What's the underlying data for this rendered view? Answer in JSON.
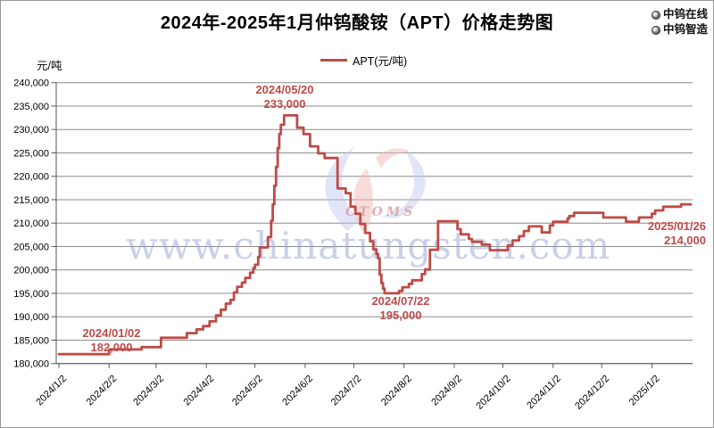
{
  "title": "2024年-2025年1月仲钨酸铵（APT）价格走势图",
  "header_badges": [
    {
      "label": "中钨在线"
    },
    {
      "label": "中钨智造"
    }
  ],
  "legend": {
    "label": "APT(元/吨)"
  },
  "y_axis_unit": "元/吨",
  "watermark": {
    "text": "www.chinatungsten.com",
    "logo_text": "CTOMS"
  },
  "colors": {
    "line": "#BE4B48",
    "annotation": "#BE4B48",
    "grid": "#8C8C8C",
    "axis": "#555555",
    "watermark_text": "#99a2d5",
    "watermark_blue": "#bcc6ee",
    "watermark_red": "#f2b9b9",
    "background": "#ffffff"
  },
  "annotations": [
    {
      "date": "2024/01/02",
      "value": "182,000"
    },
    {
      "date": "2024/05/20",
      "value": "233,000"
    },
    {
      "date": "2024/07/22",
      "value": "195,000"
    },
    {
      "date": "2025/01/26",
      "value": "214,000"
    }
  ],
  "chart_data": {
    "type": "line",
    "title": "2024年-2025年1月仲钨酸铵（APT）价格走势图",
    "xlabel": "",
    "ylabel": "元/吨",
    "ylim": [
      180000,
      240000
    ],
    "y_tick_step": 5000,
    "grid": true,
    "legend_position": "top-center",
    "x_tick_labels": [
      "2024/1/2",
      "2024/2/2",
      "2024/3/2",
      "2024/4/2",
      "2024/5/2",
      "2024/6/2",
      "2024/7/2",
      "2024/8/2",
      "2024/9/2",
      "2024/10/2",
      "2024/11/2",
      "2024/12/2",
      "2025/1/2"
    ],
    "x_tick_days": [
      0,
      31,
      60,
      91,
      121,
      152,
      182,
      213,
      244,
      274,
      305,
      335,
      366
    ],
    "x_total_days": 390,
    "key_points": [
      {
        "date": "2024/01/02",
        "value": 182000
      },
      {
        "date": "2024/05/20",
        "value": 233000
      },
      {
        "date": "2024/07/22",
        "value": 195000
      },
      {
        "date": "2025/01/26",
        "value": 214000
      }
    ],
    "series": [
      {
        "name": "APT(元/吨)",
        "unit": "元/吨",
        "points_format": "[days_since_2024-01-02, price]",
        "points": [
          [
            0,
            182000
          ],
          [
            31,
            183000
          ],
          [
            51,
            183500
          ],
          [
            63,
            185500
          ],
          [
            79,
            186500
          ],
          [
            85,
            187300
          ],
          [
            89,
            188000
          ],
          [
            93,
            189000
          ],
          [
            97,
            190300
          ],
          [
            100,
            191500
          ],
          [
            103,
            192800
          ],
          [
            106,
            193600
          ],
          [
            108,
            195200
          ],
          [
            110,
            196400
          ],
          [
            113,
            197300
          ],
          [
            115,
            198300
          ],
          [
            118,
            199400
          ],
          [
            120,
            200400
          ],
          [
            121,
            201100
          ],
          [
            123,
            202800
          ],
          [
            124,
            204800
          ],
          [
            129,
            207000
          ],
          [
            131,
            210500
          ],
          [
            132,
            214000
          ],
          [
            133,
            218000
          ],
          [
            134,
            222000
          ],
          [
            135,
            226000
          ],
          [
            136,
            229000
          ],
          [
            137,
            231000
          ],
          [
            139,
            233000
          ],
          [
            147,
            230400
          ],
          [
            151,
            229000
          ],
          [
            155,
            226400
          ],
          [
            160,
            224900
          ],
          [
            164,
            223900
          ],
          [
            172,
            217400
          ],
          [
            177,
            216400
          ],
          [
            180,
            213500
          ],
          [
            183,
            212000
          ],
          [
            186,
            209800
          ],
          [
            189,
            207900
          ],
          [
            192,
            206100
          ],
          [
            194,
            204400
          ],
          [
            196,
            203400
          ],
          [
            197,
            202500
          ],
          [
            198,
            199000
          ],
          [
            199,
            197200
          ],
          [
            200,
            196000
          ],
          [
            201,
            195000
          ],
          [
            210,
            195500
          ],
          [
            212,
            196300
          ],
          [
            216,
            197000
          ],
          [
            218,
            197800
          ],
          [
            224,
            199100
          ],
          [
            226,
            200100
          ],
          [
            229,
            204300
          ],
          [
            234,
            210400
          ],
          [
            246,
            208700
          ],
          [
            248,
            207600
          ],
          [
            253,
            206600
          ],
          [
            255,
            206000
          ],
          [
            261,
            205400
          ],
          [
            266,
            204200
          ],
          [
            277,
            205200
          ],
          [
            280,
            206300
          ],
          [
            284,
            207200
          ],
          [
            287,
            208300
          ],
          [
            290,
            209300
          ],
          [
            298,
            208000
          ],
          [
            303,
            209500
          ],
          [
            305,
            210300
          ],
          [
            314,
            211000
          ],
          [
            315,
            211500
          ],
          [
            318,
            212200
          ],
          [
            336,
            211200
          ],
          [
            350,
            210300
          ],
          [
            358,
            211200
          ],
          [
            366,
            212000
          ],
          [
            368,
            212700
          ],
          [
            373,
            213500
          ],
          [
            384,
            214000
          ],
          [
            390,
            214000
          ]
        ]
      }
    ]
  }
}
